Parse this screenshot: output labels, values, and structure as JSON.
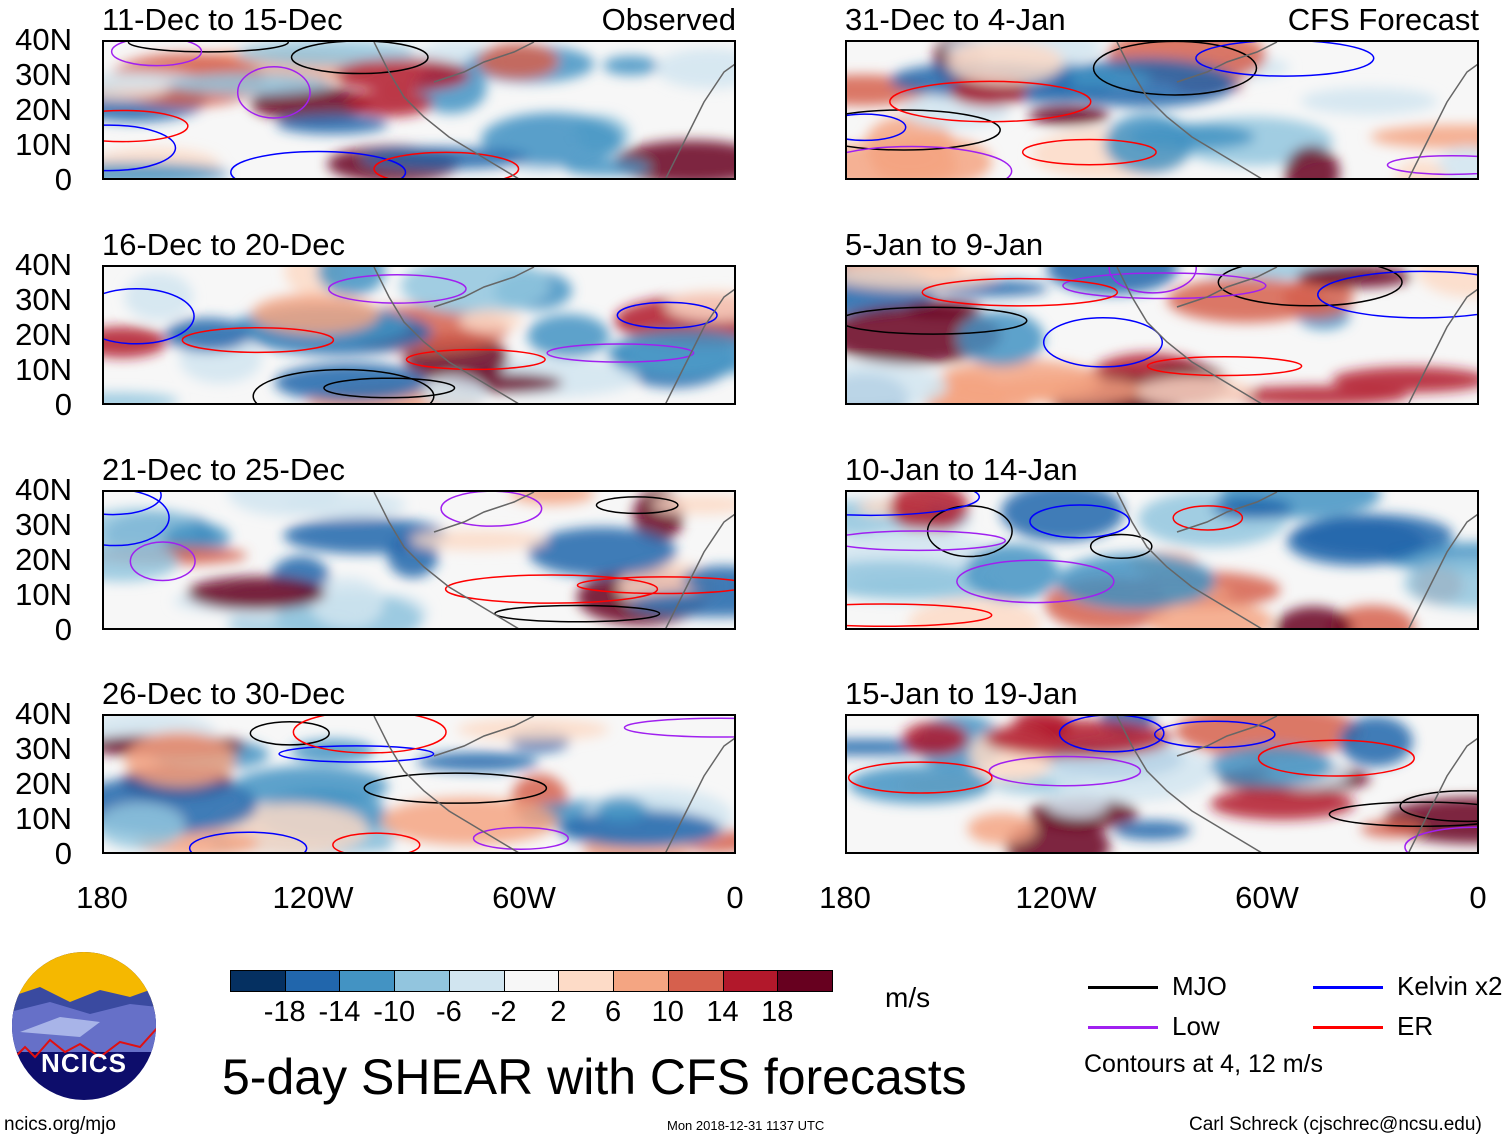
{
  "panels": [
    {
      "title": "11-Dec to 15-Dec",
      "tag": "Observed"
    },
    {
      "title": "16-Dec to 20-Dec",
      "tag": ""
    },
    {
      "title": "21-Dec to 25-Dec",
      "tag": ""
    },
    {
      "title": "26-Dec to 30-Dec",
      "tag": ""
    },
    {
      "title": "31-Dec to 4-Jan",
      "tag": "CFS Forecast"
    },
    {
      "title": "5-Jan to 9-Jan",
      "tag": ""
    },
    {
      "title": "10-Jan to 14-Jan",
      "tag": ""
    },
    {
      "title": "15-Jan to 19-Jan",
      "tag": ""
    }
  ],
  "y_ticks": [
    "40N",
    "30N",
    "20N",
    "10N",
    "0"
  ],
  "x_ticks": [
    "180",
    "120W",
    "60W",
    "0"
  ],
  "colorbar": {
    "colors": [
      "#053061",
      "#2166ac",
      "#4393c3",
      "#92c5de",
      "#d1e5f0",
      "#f7f7f7",
      "#fddbc7",
      "#f4a582",
      "#d6604d",
      "#b2182b",
      "#67001f"
    ],
    "labels": [
      "-18",
      "-14",
      "-10",
      "-6",
      "-2",
      "2",
      "6",
      "10",
      "14",
      "18"
    ],
    "units": "m/s"
  },
  "legend": {
    "items": [
      {
        "label": "MJO",
        "color": "#000000"
      },
      {
        "label": "Kelvin x2",
        "color": "#0000ff"
      },
      {
        "label": "Low",
        "color": "#a020f0"
      },
      {
        "label": "ER",
        "color": "#ff0000"
      }
    ],
    "note": "Contours at 4, 12 m/s"
  },
  "title": "5-day SHEAR with CFS forecasts",
  "logo_text": "NCICS",
  "footer": {
    "url": "ncics.org/mjo",
    "timestamp": "Mon 2018-12-31 1137 UTC",
    "credit": "Carl Schreck (cjschrec@ncsu.edu)"
  }
}
